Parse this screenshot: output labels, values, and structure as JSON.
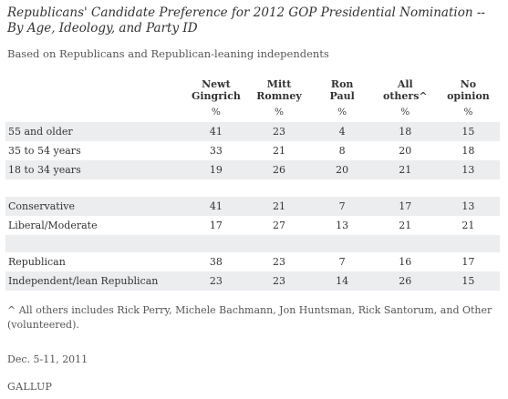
{
  "title": "Republicans' Candidate Preference for 2012 GOP Presidential Nomination -- By Age, Ideology, and Party ID",
  "subtitle": "Based on Republicans and Republican-leaning independents",
  "chart_data": {
    "type": "table",
    "columns": [
      {
        "line1": "Newt",
        "line2": "Gingrich"
      },
      {
        "line1": "Mitt",
        "line2": "Romney"
      },
      {
        "line1": "Ron",
        "line2": "Paul"
      },
      {
        "line1": "All",
        "line2": "others^"
      },
      {
        "line1": "No",
        "line2": "opinion"
      }
    ],
    "units": [
      "%",
      "%",
      "%",
      "%",
      "%"
    ],
    "rows": [
      {
        "label": "55 and older",
        "values": [
          "41",
          "23",
          "4",
          "18",
          "15"
        ]
      },
      {
        "label": "35 to 54 years",
        "values": [
          "33",
          "21",
          "8",
          "20",
          "18"
        ]
      },
      {
        "label": "18 to 34 years",
        "values": [
          "19",
          "26",
          "20",
          "21",
          "13"
        ]
      },
      {
        "label": "Conservative",
        "values": [
          "41",
          "21",
          "7",
          "17",
          "13"
        ]
      },
      {
        "label": "Liberal/Moderate",
        "values": [
          "17",
          "27",
          "13",
          "21",
          "21"
        ]
      },
      {
        "label": "Republican",
        "values": [
          "38",
          "23",
          "7",
          "16",
          "17"
        ]
      },
      {
        "label": "Independent/lean Republican",
        "values": [
          "23",
          "23",
          "14",
          "26",
          "15"
        ]
      }
    ]
  },
  "footnote": "^ All others includes Rick Perry, Michele Bachmann, Jon Huntsman, Rick Santorum, and Other (volunteered).",
  "date": "Dec. 5-11, 2011",
  "source": "GALLUP"
}
